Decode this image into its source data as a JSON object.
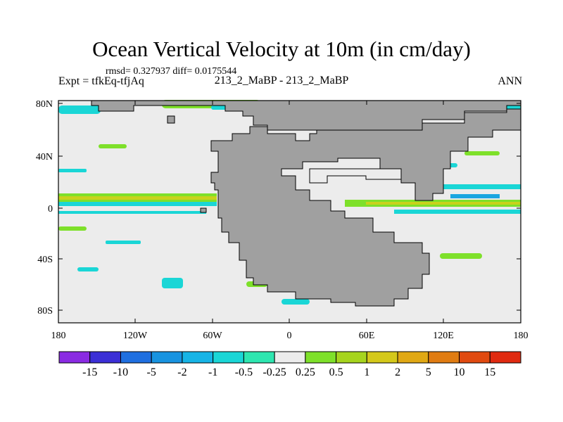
{
  "title": "Ocean Vertical Velocity at 10m (in cm/day)",
  "stats": "rmsd= 0.327937 diff= 0.0175544",
  "expt": "Expt = tfkEq-tfjAq",
  "case": "213_2_MaBP - 213_2_MaBP",
  "season": "ANN",
  "y_ticks": [
    "80N",
    "40N",
    "0",
    "40S",
    "80S"
  ],
  "x_ticks": [
    "180",
    "120W",
    "60W",
    "0",
    "60E",
    "120E",
    "180"
  ],
  "colorbar": {
    "labels": [
      "-15",
      "-10",
      "-5",
      "-2",
      "-1",
      "-0.5",
      "-0.25",
      "0.25",
      "0.5",
      "1",
      "2",
      "5",
      "10",
      "15"
    ],
    "colors": [
      "#8a2be2",
      "#3b2fd6",
      "#1f6fe0",
      "#1893e0",
      "#17b4e6",
      "#1ad6d6",
      "#2ee6b0",
      "#ececec",
      "#7ee02a",
      "#a6d41e",
      "#d4c81a",
      "#e0a814",
      "#e07c12",
      "#e04a10",
      "#e02a10"
    ]
  },
  "colors": {
    "land": "#a0a0a0",
    "ocean_background": "#ececec",
    "upwelling_green": "#7ee02a",
    "upwelling_yellow": "#c8d21c",
    "downwelling_cyan": "#1ad6d6",
    "downwelling_blue": "#1aa6e0"
  }
}
